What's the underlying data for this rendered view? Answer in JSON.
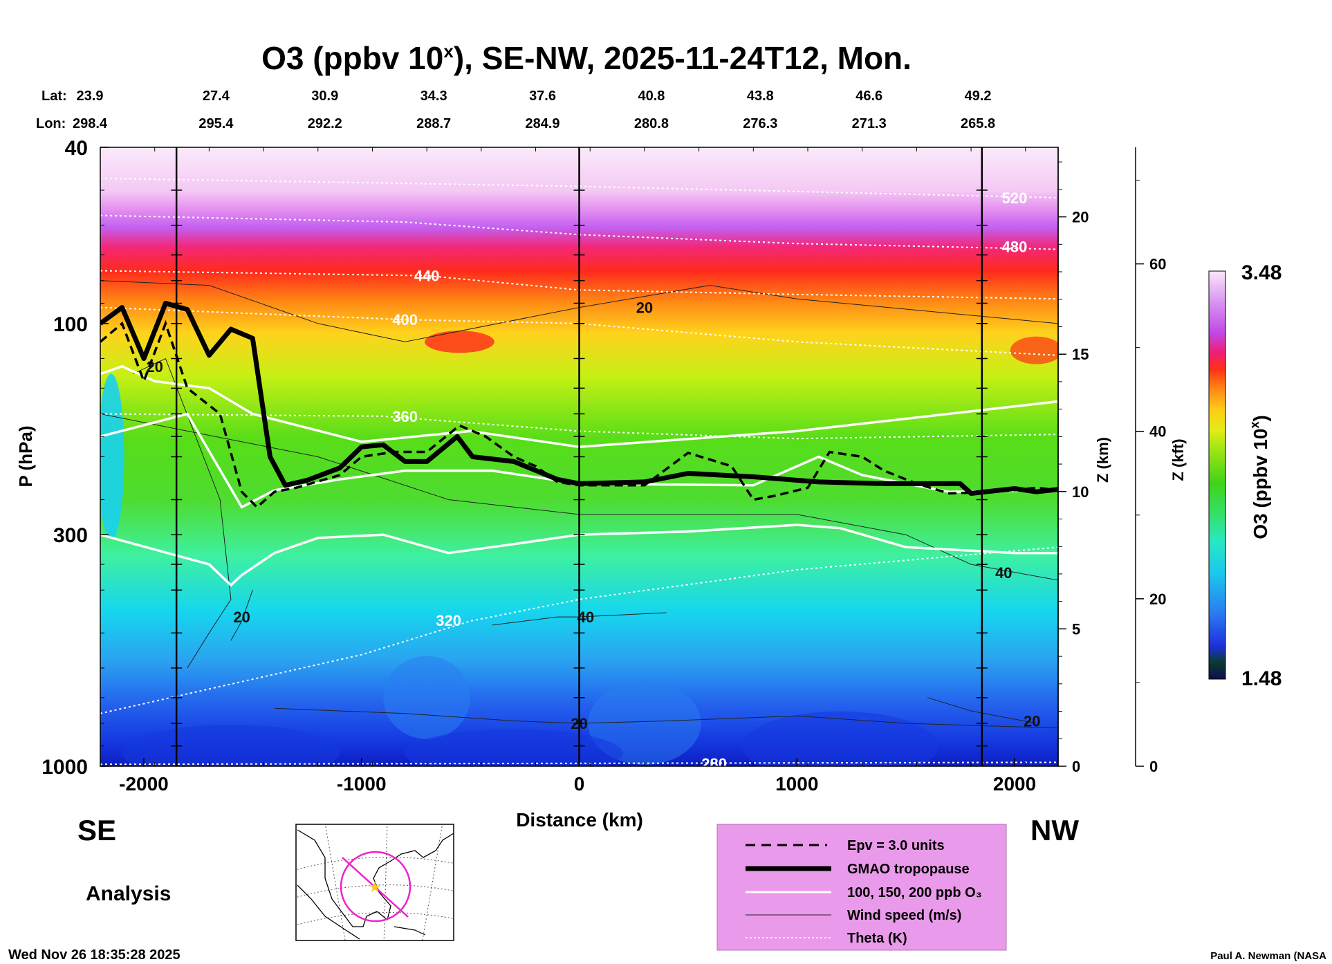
{
  "chart_data": {
    "type": "heatmap",
    "title": "O3 (ppbv 10",
    "title_superscript": "x",
    "title_suffix": "), SE-NW, 2025-11-24T12, Mon.",
    "xlabel": "Distance (km)",
    "ylabel": "P (hPa)",
    "ylabel_z_km": "Z (km)",
    "ylabel_z_kft": "Z (kft)",
    "xlim": [
      -2200,
      2200
    ],
    "ylim_hpa": [
      1000,
      40
    ],
    "x_ticks": [
      -2000,
      -1000,
      0,
      1000,
      2000
    ],
    "x_tick_labels": [
      "-2000",
      "-1000",
      "0",
      "1000",
      "2000"
    ],
    "p_ticks": [
      40,
      100,
      300,
      1000
    ],
    "p_tick_labels": [
      "40",
      "100",
      "300",
      "1000"
    ],
    "z_km_ticks": [
      0,
      5,
      10,
      15,
      20
    ],
    "z_km_tick_labels": [
      "0",
      "5",
      "10",
      "15",
      "20"
    ],
    "z_kft_ticks": [
      0,
      20,
      40,
      60
    ],
    "z_kft_tick_labels": [
      "0",
      "20",
      "40",
      "60"
    ],
    "lat_label": "Lat:",
    "lon_label": "Lon:",
    "lat_values": [
      "23.9",
      "27.4",
      "30.9",
      "34.3",
      "37.6",
      "40.8",
      "43.8",
      "46.6",
      "49.2"
    ],
    "lon_values": [
      "298.4",
      "295.4",
      "292.2",
      "288.7",
      "284.9",
      "280.8",
      "276.3",
      "271.3",
      "265.8"
    ],
    "latlon_km": [
      -2200,
      -1700,
      -1200,
      -700,
      -200,
      300,
      800,
      1300,
      1800
    ],
    "vertical_lines_km": [
      -1850,
      0,
      1850
    ],
    "colorbar": {
      "label": "O3 (ppbv 10",
      "label_sup": "x",
      "label_end": ")",
      "min_label": "1.48",
      "max_label": "3.48",
      "min": 1.48,
      "max": 3.48
    },
    "theta_contours": [
      {
        "label": "280",
        "p_hpa": 990,
        "pts": [
          [
            -2200,
            990
          ],
          [
            0,
            985
          ],
          [
            2200,
            980
          ]
        ],
        "label_at": [
          620,
          985
        ]
      },
      {
        "label": "320",
        "p_hpa": 380,
        "pts": [
          [
            -2200,
            760
          ],
          [
            -1000,
            560
          ],
          [
            -500,
            470
          ],
          [
            0,
            420
          ],
          [
            1000,
            360
          ],
          [
            2200,
            320
          ]
        ],
        "label_at": [
          -600,
          468
        ]
      },
      {
        "label": "360",
        "p_hpa": 165,
        "pts": [
          [
            -2200,
            160
          ],
          [
            -900,
            162
          ],
          [
            0,
            175
          ],
          [
            1000,
            182
          ],
          [
            2200,
            178
          ]
        ],
        "label_at": [
          -800,
          162
        ]
      },
      {
        "label": "400",
        "p_hpa": 100,
        "pts": [
          [
            -2200,
            92
          ],
          [
            -800,
            98
          ],
          [
            0,
            100
          ],
          [
            1000,
            110
          ],
          [
            2200,
            118
          ]
        ],
        "label_at": [
          -800,
          98
        ]
      },
      {
        "label": "440",
        "p_hpa": 80,
        "pts": [
          [
            -2200,
            76
          ],
          [
            -700,
            78
          ],
          [
            0,
            84
          ],
          [
            1000,
            86
          ],
          [
            2200,
            88
          ]
        ],
        "label_at": [
          -700,
          78
        ]
      },
      {
        "label": "480",
        "p_hpa": 60,
        "pts": [
          [
            -2200,
            57
          ],
          [
            -800,
            59
          ],
          [
            0,
            63
          ],
          [
            1000,
            66
          ],
          [
            2200,
            68
          ]
        ],
        "label_at": [
          2000,
          67
        ]
      },
      {
        "label": "520",
        "p_hpa": 48,
        "pts": [
          [
            -2200,
            47
          ],
          [
            0,
            49
          ],
          [
            2200,
            52
          ]
        ],
        "label_at": [
          2000,
          52
        ]
      }
    ],
    "tropopause_hpa": [
      [
        -2200,
        100
      ],
      [
        -2100,
        92
      ],
      [
        -2000,
        120
      ],
      [
        -1900,
        90
      ],
      [
        -1800,
        93
      ],
      [
        -1700,
        118
      ],
      [
        -1600,
        103
      ],
      [
        -1500,
        108
      ],
      [
        -1420,
        200
      ],
      [
        -1350,
        232
      ],
      [
        -1250,
        226
      ],
      [
        -1100,
        212
      ],
      [
        -1000,
        190
      ],
      [
        -900,
        188
      ],
      [
        -800,
        205
      ],
      [
        -700,
        205
      ],
      [
        -560,
        180
      ],
      [
        -490,
        200
      ],
      [
        -300,
        205
      ],
      [
        -100,
        225
      ],
      [
        0,
        230
      ],
      [
        300,
        228
      ],
      [
        500,
        218
      ],
      [
        800,
        222
      ],
      [
        1100,
        228
      ],
      [
        1400,
        230
      ],
      [
        1750,
        230
      ],
      [
        1800,
        242
      ],
      [
        2000,
        236
      ],
      [
        2100,
        240
      ],
      [
        2200,
        237
      ]
    ],
    "epv_hpa": [
      [
        -2200,
        110
      ],
      [
        -2100,
        100
      ],
      [
        -2000,
        135
      ],
      [
        -1900,
        100
      ],
      [
        -1800,
        140
      ],
      [
        -1650,
        160
      ],
      [
        -1550,
        240
      ],
      [
        -1480,
        260
      ],
      [
        -1400,
        240
      ],
      [
        -1300,
        235
      ],
      [
        -1100,
        220
      ],
      [
        -1000,
        200
      ],
      [
        -850,
        195
      ],
      [
        -700,
        195
      ],
      [
        -550,
        170
      ],
      [
        -430,
        180
      ],
      [
        -300,
        200
      ],
      [
        -200,
        210
      ],
      [
        -100,
        228
      ],
      [
        0,
        232
      ],
      [
        300,
        232
      ],
      [
        500,
        196
      ],
      [
        700,
        210
      ],
      [
        800,
        250
      ],
      [
        900,
        245
      ],
      [
        1050,
        235
      ],
      [
        1150,
        195
      ],
      [
        1300,
        200
      ],
      [
        1400,
        215
      ],
      [
        1550,
        230
      ],
      [
        1700,
        242
      ],
      [
        1900,
        240
      ],
      [
        2000,
        238
      ],
      [
        2100,
        235
      ],
      [
        2200,
        238
      ]
    ],
    "o3_contours": [
      {
        "label": "100 ppb",
        "pts": [
          [
            -2200,
            300
          ],
          [
            -1700,
            350
          ],
          [
            -1600,
            390
          ],
          [
            -1550,
            370
          ],
          [
            -1400,
            330
          ],
          [
            -1200,
            305
          ],
          [
            -900,
            300
          ],
          [
            -600,
            330
          ],
          [
            -300,
            315
          ],
          [
            0,
            300
          ],
          [
            500,
            295
          ],
          [
            1000,
            285
          ],
          [
            1200,
            290
          ],
          [
            1500,
            320
          ],
          [
            2000,
            330
          ],
          [
            2200,
            330
          ]
        ]
      },
      {
        "label": "150 ppb",
        "pts": [
          [
            -2200,
            180
          ],
          [
            -1800,
            160
          ],
          [
            -1550,
            260
          ],
          [
            -1400,
            238
          ],
          [
            -1100,
            225
          ],
          [
            -800,
            215
          ],
          [
            -400,
            215
          ],
          [
            0,
            230
          ],
          [
            800,
            232
          ],
          [
            1100,
            200
          ],
          [
            1300,
            220
          ],
          [
            1700,
            240
          ],
          [
            2200,
            238
          ]
        ]
      },
      {
        "label": "200 ppb",
        "pts": [
          [
            -2200,
            130
          ],
          [
            -2100,
            125
          ],
          [
            -1950,
            135
          ],
          [
            -1700,
            140
          ],
          [
            -1500,
            160
          ],
          [
            -1000,
            185
          ],
          [
            -500,
            175
          ],
          [
            0,
            190
          ],
          [
            1000,
            175
          ],
          [
            2200,
            150
          ]
        ]
      }
    ],
    "wind_contours": [
      {
        "label": "20",
        "pts": [
          [
            -2200,
            80
          ],
          [
            -1700,
            82
          ],
          [
            -1200,
            100
          ],
          [
            -800,
            110
          ],
          [
            0,
            92
          ],
          [
            600,
            82
          ],
          [
            1000,
            88
          ],
          [
            2200,
            100
          ]
        ],
        "label_at": [
          300,
          92
        ]
      },
      {
        "label": "20",
        "pts": [
          [
            -2050,
            130
          ],
          [
            -1900,
            120
          ],
          [
            -1650,
            250
          ],
          [
            -1600,
            420
          ],
          [
            -1700,
            500
          ],
          [
            -1800,
            600
          ]
        ],
        "label_at": [
          -1950,
          125
        ]
      },
      {
        "label": "20",
        "pts": [
          [
            -1500,
            400
          ],
          [
            -1550,
            470
          ],
          [
            -1600,
            520
          ]
        ],
        "label_at": [
          -1550,
          460
        ]
      },
      {
        "label": "40",
        "pts": [
          [
            -2200,
            160
          ],
          [
            -1200,
            200
          ],
          [
            -600,
            250
          ],
          [
            0,
            270
          ],
          [
            1000,
            270
          ],
          [
            1500,
            300
          ],
          [
            1800,
            350
          ],
          [
            2200,
            380
          ]
        ],
        "label_at": [
          1950,
          365
        ]
      },
      {
        "label": "40",
        "pts": [
          [
            -400,
            480
          ],
          [
            -100,
            460
          ],
          [
            0,
            460
          ],
          [
            400,
            450
          ]
        ],
        "label_at": [
          30,
          460
        ]
      },
      {
        "label": "20",
        "pts": [
          [
            -1400,
            740
          ],
          [
            -800,
            760
          ],
          [
            -300,
            790
          ],
          [
            0,
            800
          ],
          [
            400,
            790
          ],
          [
            1000,
            770
          ],
          [
            1500,
            800
          ],
          [
            2200,
            820
          ]
        ],
        "label_at": [
          0,
          800
        ]
      },
      {
        "label": "20",
        "pts": [
          [
            1600,
            700
          ],
          [
            1800,
            750
          ],
          [
            2100,
            800
          ]
        ],
        "label_at": [
          2080,
          790
        ]
      }
    ],
    "legend": {
      "position": "bottom-right",
      "items": [
        "Epv = 3.0 units",
        "GMAO tropopause",
        "100, 150, 200 ppb O₃",
        "Wind speed (m/s)",
        "Theta (K)"
      ]
    },
    "direction_left": "SE",
    "direction_right": "NW",
    "analysis_label": "Analysis",
    "timestamp": "Wed Nov 26 18:35:28 2025",
    "credit": "Paul A. Newman (NASA"
  },
  "colors": {
    "background": "#ffffff",
    "legend_bg": "#ea9aea",
    "map_line": "#ee22cc",
    "map_star": "#ffcc22",
    "theta": "#ffffff",
    "o3_contour": "#ffffff",
    "tropopause": "#000000",
    "wind": "#222222"
  },
  "map": {
    "label": "track-map",
    "icon": "globe-map-icon"
  }
}
